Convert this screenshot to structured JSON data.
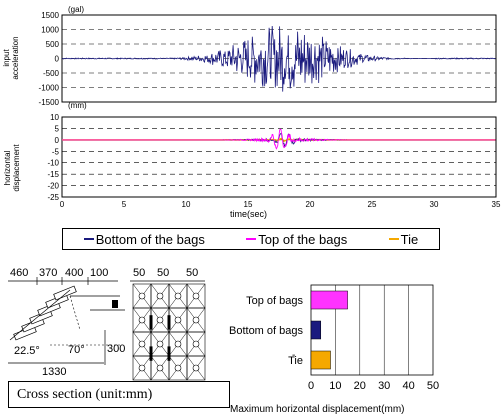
{
  "chart_data": [
    {
      "type": "line",
      "ylabel": "input acceleration",
      "unit": "(gal)",
      "yticks": [
        1500,
        1000,
        500,
        0,
        -500,
        -1000,
        -1500
      ],
      "ylim": [
        -1500,
        1500
      ],
      "xlim": [
        0,
        35
      ],
      "grid": true,
      "series": [
        {
          "color": "#1a1a7e",
          "shape": "burst",
          "onset": 8,
          "peak_time": 18,
          "peak": 1250,
          "end": 30
        }
      ]
    },
    {
      "type": "line",
      "ylabel": "horizontal displacement",
      "unit": "(mm)",
      "yticks": [
        10,
        5,
        0,
        -5,
        -10,
        -15,
        -20,
        -25
      ],
      "ylim": [
        -25,
        10
      ],
      "xlim": [
        0,
        35
      ],
      "xticks": [
        0,
        5,
        10,
        15,
        20,
        25,
        30,
        35
      ],
      "xlabel": "time(sec)",
      "grid": true,
      "series": [
        {
          "name": "Bottom of the bags",
          "color": "#1a1a7e",
          "peak": 3,
          "peak_time": 18
        },
        {
          "name": "Top of the bags",
          "color": "#ff00ff",
          "peak": 5,
          "peak_time": 17.6
        },
        {
          "name": "Tie",
          "color": "#f5a800",
          "peak": 0.5,
          "peak_time": 18
        }
      ]
    },
    {
      "type": "bar",
      "orientation": "horizontal",
      "categories": [
        "Top of bags",
        "Bottom of bags",
        "Tie"
      ],
      "values": [
        15,
        4,
        8
      ],
      "colors": [
        "#ff33ff",
        "#1a1a7e",
        "#f5a800"
      ],
      "xticks": [
        0,
        10,
        20,
        30,
        40,
        50
      ],
      "xlim": [
        0,
        50
      ],
      "xlabel": "Maximum horizontal displacement(mm)",
      "grid": true
    }
  ],
  "legend": [
    {
      "label": "Bottom of the bags",
      "color": "#1a1a7e"
    },
    {
      "label": "Top of the bags",
      "color": "#ff00ff"
    },
    {
      "label": "Tie",
      "color": "#f5a800"
    }
  ],
  "diagram": {
    "dims_top": [
      "460",
      "370",
      "400",
      "100"
    ],
    "angle_left": "22.5°",
    "angle_mid": "70°",
    "height": "300",
    "width_bottom": "1330",
    "grid_dims": [
      "50",
      "50",
      "50"
    ]
  },
  "caption": "Cross section (unit:mm)"
}
